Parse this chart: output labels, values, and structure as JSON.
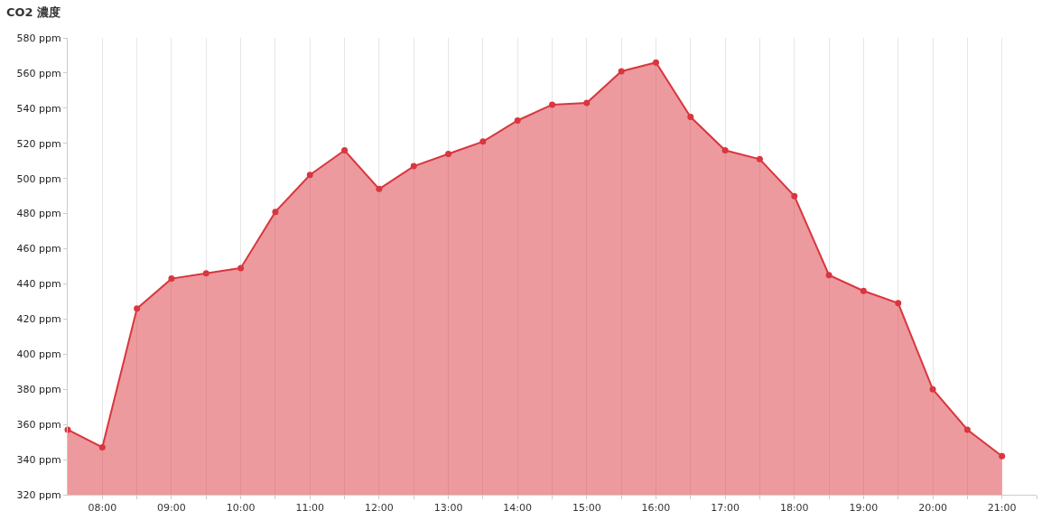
{
  "chart_data": {
    "type": "area",
    "title": "CO2 濃度",
    "x": [
      7.5,
      8,
      8.5,
      9,
      9.5,
      10,
      10.5,
      11,
      11.5,
      12,
      12.5,
      13,
      13.5,
      14,
      14.5,
      15,
      15.5,
      16,
      16.5,
      17,
      17.5,
      18,
      18.5,
      19,
      19.5,
      20,
      20.5,
      21
    ],
    "series": [
      {
        "color": "#d9363e",
        "values": [
          357,
          347,
          426,
          443,
          446,
          449,
          481,
          502,
          516,
          494,
          507,
          514,
          521,
          533,
          542,
          543,
          561,
          566,
          535,
          516,
          511,
          490,
          445,
          436,
          429,
          380,
          357,
          342
        ]
      }
    ],
    "xlim": [
      7.5,
      21.5
    ],
    "xticks": [
      {
        "value": 8,
        "label": "08:00"
      },
      {
        "value": 8.5,
        "label": null
      },
      {
        "value": 9,
        "label": "09:00"
      },
      {
        "value": 9.5,
        "label": null
      },
      {
        "value": 10,
        "label": "10:00"
      },
      {
        "value": 10.5,
        "label": null
      },
      {
        "value": 11,
        "label": "11:00"
      },
      {
        "value": 11.5,
        "label": null
      },
      {
        "value": 12,
        "label": "12:00"
      },
      {
        "value": 12.5,
        "label": null
      },
      {
        "value": 13,
        "label": "13:00"
      },
      {
        "value": 13.5,
        "label": null
      },
      {
        "value": 14,
        "label": "14:00"
      },
      {
        "value": 14.5,
        "label": null
      },
      {
        "value": 15,
        "label": "15:00"
      },
      {
        "value": 15.5,
        "label": null
      },
      {
        "value": 16,
        "label": "16:00"
      },
      {
        "value": 16.5,
        "label": null
      },
      {
        "value": 17,
        "label": "17:00"
      },
      {
        "value": 17.5,
        "label": null
      },
      {
        "value": 18,
        "label": "18:00"
      },
      {
        "value": 18.5,
        "label": null
      },
      {
        "value": 19,
        "label": "19:00"
      },
      {
        "value": 19.5,
        "label": null
      },
      {
        "value": 20,
        "label": "20:00"
      },
      {
        "value": 20.5,
        "label": null
      },
      {
        "value": 21,
        "label": "21:00"
      },
      {
        "value": 21.5,
        "label": null
      }
    ],
    "ylim": [
      320,
      580
    ],
    "yticks": [
      {
        "value": 320,
        "label": "320 ppm"
      },
      {
        "value": 340,
        "label": "340 ppm"
      },
      {
        "value": 360,
        "label": "360 ppm"
      },
      {
        "value": 380,
        "label": "380 ppm"
      },
      {
        "value": 400,
        "label": "400 ppm"
      },
      {
        "value": 420,
        "label": "420 ppm"
      },
      {
        "value": 440,
        "label": "440 ppm"
      },
      {
        "value": 460,
        "label": "460 ppm"
      },
      {
        "value": 480,
        "label": "480 ppm"
      },
      {
        "value": 500,
        "label": "500 ppm"
      },
      {
        "value": 520,
        "label": "520 ppm"
      },
      {
        "value": 540,
        "label": "540 ppm"
      },
      {
        "value": 560,
        "label": "560 ppm"
      },
      {
        "value": 580,
        "label": "580 ppm"
      }
    ],
    "grid": "x",
    "marker": "circle",
    "line_style": "solid"
  }
}
